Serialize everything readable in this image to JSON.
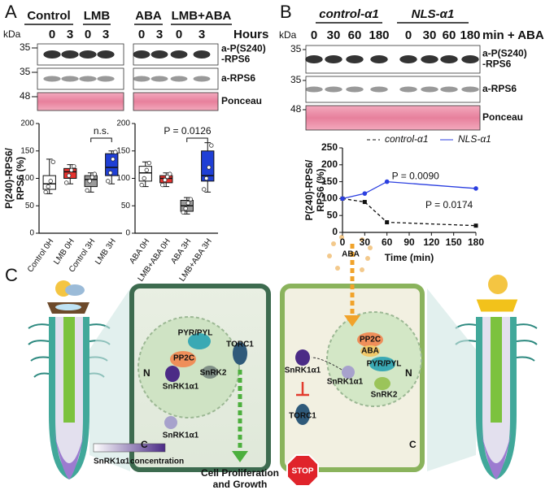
{
  "panel_labels": [
    "A",
    "B",
    "C"
  ],
  "blot_a": {
    "groups": [
      "Control",
      "LMB",
      "ABA",
      "LMB+ABA"
    ],
    "lanes": [
      "0",
      "3",
      "0",
      "3",
      "0",
      "3",
      "0",
      "3"
    ],
    "unit": "Hours",
    "kda": "kDa",
    "markers": [
      "35",
      "35",
      "48"
    ],
    "row_labels": [
      [
        "a-P(S240)",
        "-RPS6"
      ],
      [
        "a-RPS6"
      ],
      [
        "Ponceau"
      ]
    ]
  },
  "blot_b": {
    "groups": [
      "control-α1",
      "NLS-α1"
    ],
    "lanes": [
      "0",
      "30",
      "60",
      "180",
      "0",
      "30",
      "60",
      "180"
    ],
    "unit": "min + ABA",
    "kda": "kDa",
    "markers": [
      "35",
      "35",
      "48"
    ],
    "row_labels": [
      [
        "a-P(S240)",
        "-RPS6"
      ],
      [
        "a-RPS6"
      ],
      [
        "Ponceau"
      ]
    ]
  },
  "chart_data": [
    {
      "type": "box",
      "y_label": [
        "P(240)-RPS6/",
        "RPS6 (%)"
      ],
      "ylim": [
        0,
        200
      ],
      "yticks": [
        0,
        50,
        100,
        150,
        200
      ],
      "annotation": "n.s.",
      "boxes": [
        {
          "name": "Control 0H",
          "color": "#ffffff",
          "min": 72,
          "q1": 80,
          "median": 90,
          "q3": 105,
          "max": 135,
          "points": [
            75,
            85,
            95,
            130
          ]
        },
        {
          "name": "LMB 0H",
          "color": "#e8332f",
          "min": 90,
          "q1": 100,
          "median": 112,
          "q3": 118,
          "max": 125,
          "points": [
            92,
            105,
            115,
            122
          ]
        },
        {
          "name": "Control 3H",
          "color": "#9a9a9a",
          "min": 75,
          "q1": 85,
          "median": 98,
          "q3": 105,
          "max": 110,
          "points": [
            78,
            95,
            102,
            108
          ]
        },
        {
          "name": "LMB 3H",
          "color": "#1f3fd6",
          "min": 90,
          "q1": 105,
          "median": 120,
          "q3": 145,
          "max": 150,
          "points": [
            95,
            110,
            135,
            148
          ]
        }
      ]
    },
    {
      "type": "box",
      "ylim": [
        0,
        200
      ],
      "yticks": [
        0,
        50,
        100,
        150,
        200
      ],
      "annotation": "P = 0.0126",
      "boxes": [
        {
          "name": "ABA 0H",
          "color": "#ffffff",
          "min": 85,
          "q1": 95,
          "median": 110,
          "q3": 122,
          "max": 130,
          "points": [
            88,
            100,
            115,
            128
          ]
        },
        {
          "name": "LMB+ABA 0H",
          "color": "#e8332f",
          "min": 85,
          "q1": 92,
          "median": 100,
          "q3": 105,
          "max": 110,
          "points": [
            88,
            97,
            103,
            108
          ]
        },
        {
          "name": "ABA 3H",
          "color": "#9a9a9a",
          "min": 35,
          "q1": 40,
          "median": 50,
          "q3": 60,
          "max": 65,
          "points": [
            38,
            45,
            55,
            62
          ]
        },
        {
          "name": "LMB+ABA 3H",
          "color": "#1f3fd6",
          "min": 75,
          "q1": 95,
          "median": 105,
          "q3": 150,
          "max": 165,
          "points": [
            80,
            100,
            120,
            160
          ]
        }
      ]
    },
    {
      "type": "line",
      "y_label": [
        "P(240)-RPS6/",
        "RPS6 (%)"
      ],
      "x_label": "Time (min)",
      "x": [
        0,
        30,
        60,
        180
      ],
      "xlim": [
        0,
        180
      ],
      "xticks": [
        0,
        30,
        60,
        90,
        120,
        150,
        180
      ],
      "ylim": [
        0,
        250
      ],
      "yticks": [
        0,
        50,
        100,
        150,
        200,
        250
      ],
      "annotations": [
        "P = 0.0090",
        "P = 0.0174"
      ],
      "series": [
        {
          "name": "control-α1",
          "color": "#111111",
          "linestyle": "dashed",
          "values": [
            100,
            90,
            30,
            20
          ]
        },
        {
          "name": "NLS-α1",
          "color": "#2b3fe0",
          "linestyle": "solid",
          "values": [
            100,
            115,
            150,
            130
          ]
        }
      ]
    }
  ],
  "diagram": {
    "left": {
      "pyr": "PYR/PYL",
      "pp2c": "PP2C",
      "snrk2": "SnRK2",
      "snrk1_n": "SnRK1α1",
      "snrk1_c": "SnRK1α1",
      "torc1": "TORC1",
      "n": "N",
      "c": "C",
      "outcome": [
        "Cell Proliferation",
        "and Growth"
      ]
    },
    "right": {
      "aba_cloud": "ABA",
      "pp2c": "PP2C",
      "aba": "ABA",
      "pyr": "PYR/PYL",
      "snrk2": "SnRK2",
      "snrk1_n": "SnRK1α1",
      "snrk1_c": "SnRK1α1",
      "torc1": "TORC1",
      "n": "N",
      "c": "C",
      "stop": "STOP"
    },
    "scale": [
      "SnRK1α1",
      "concentration"
    ]
  }
}
